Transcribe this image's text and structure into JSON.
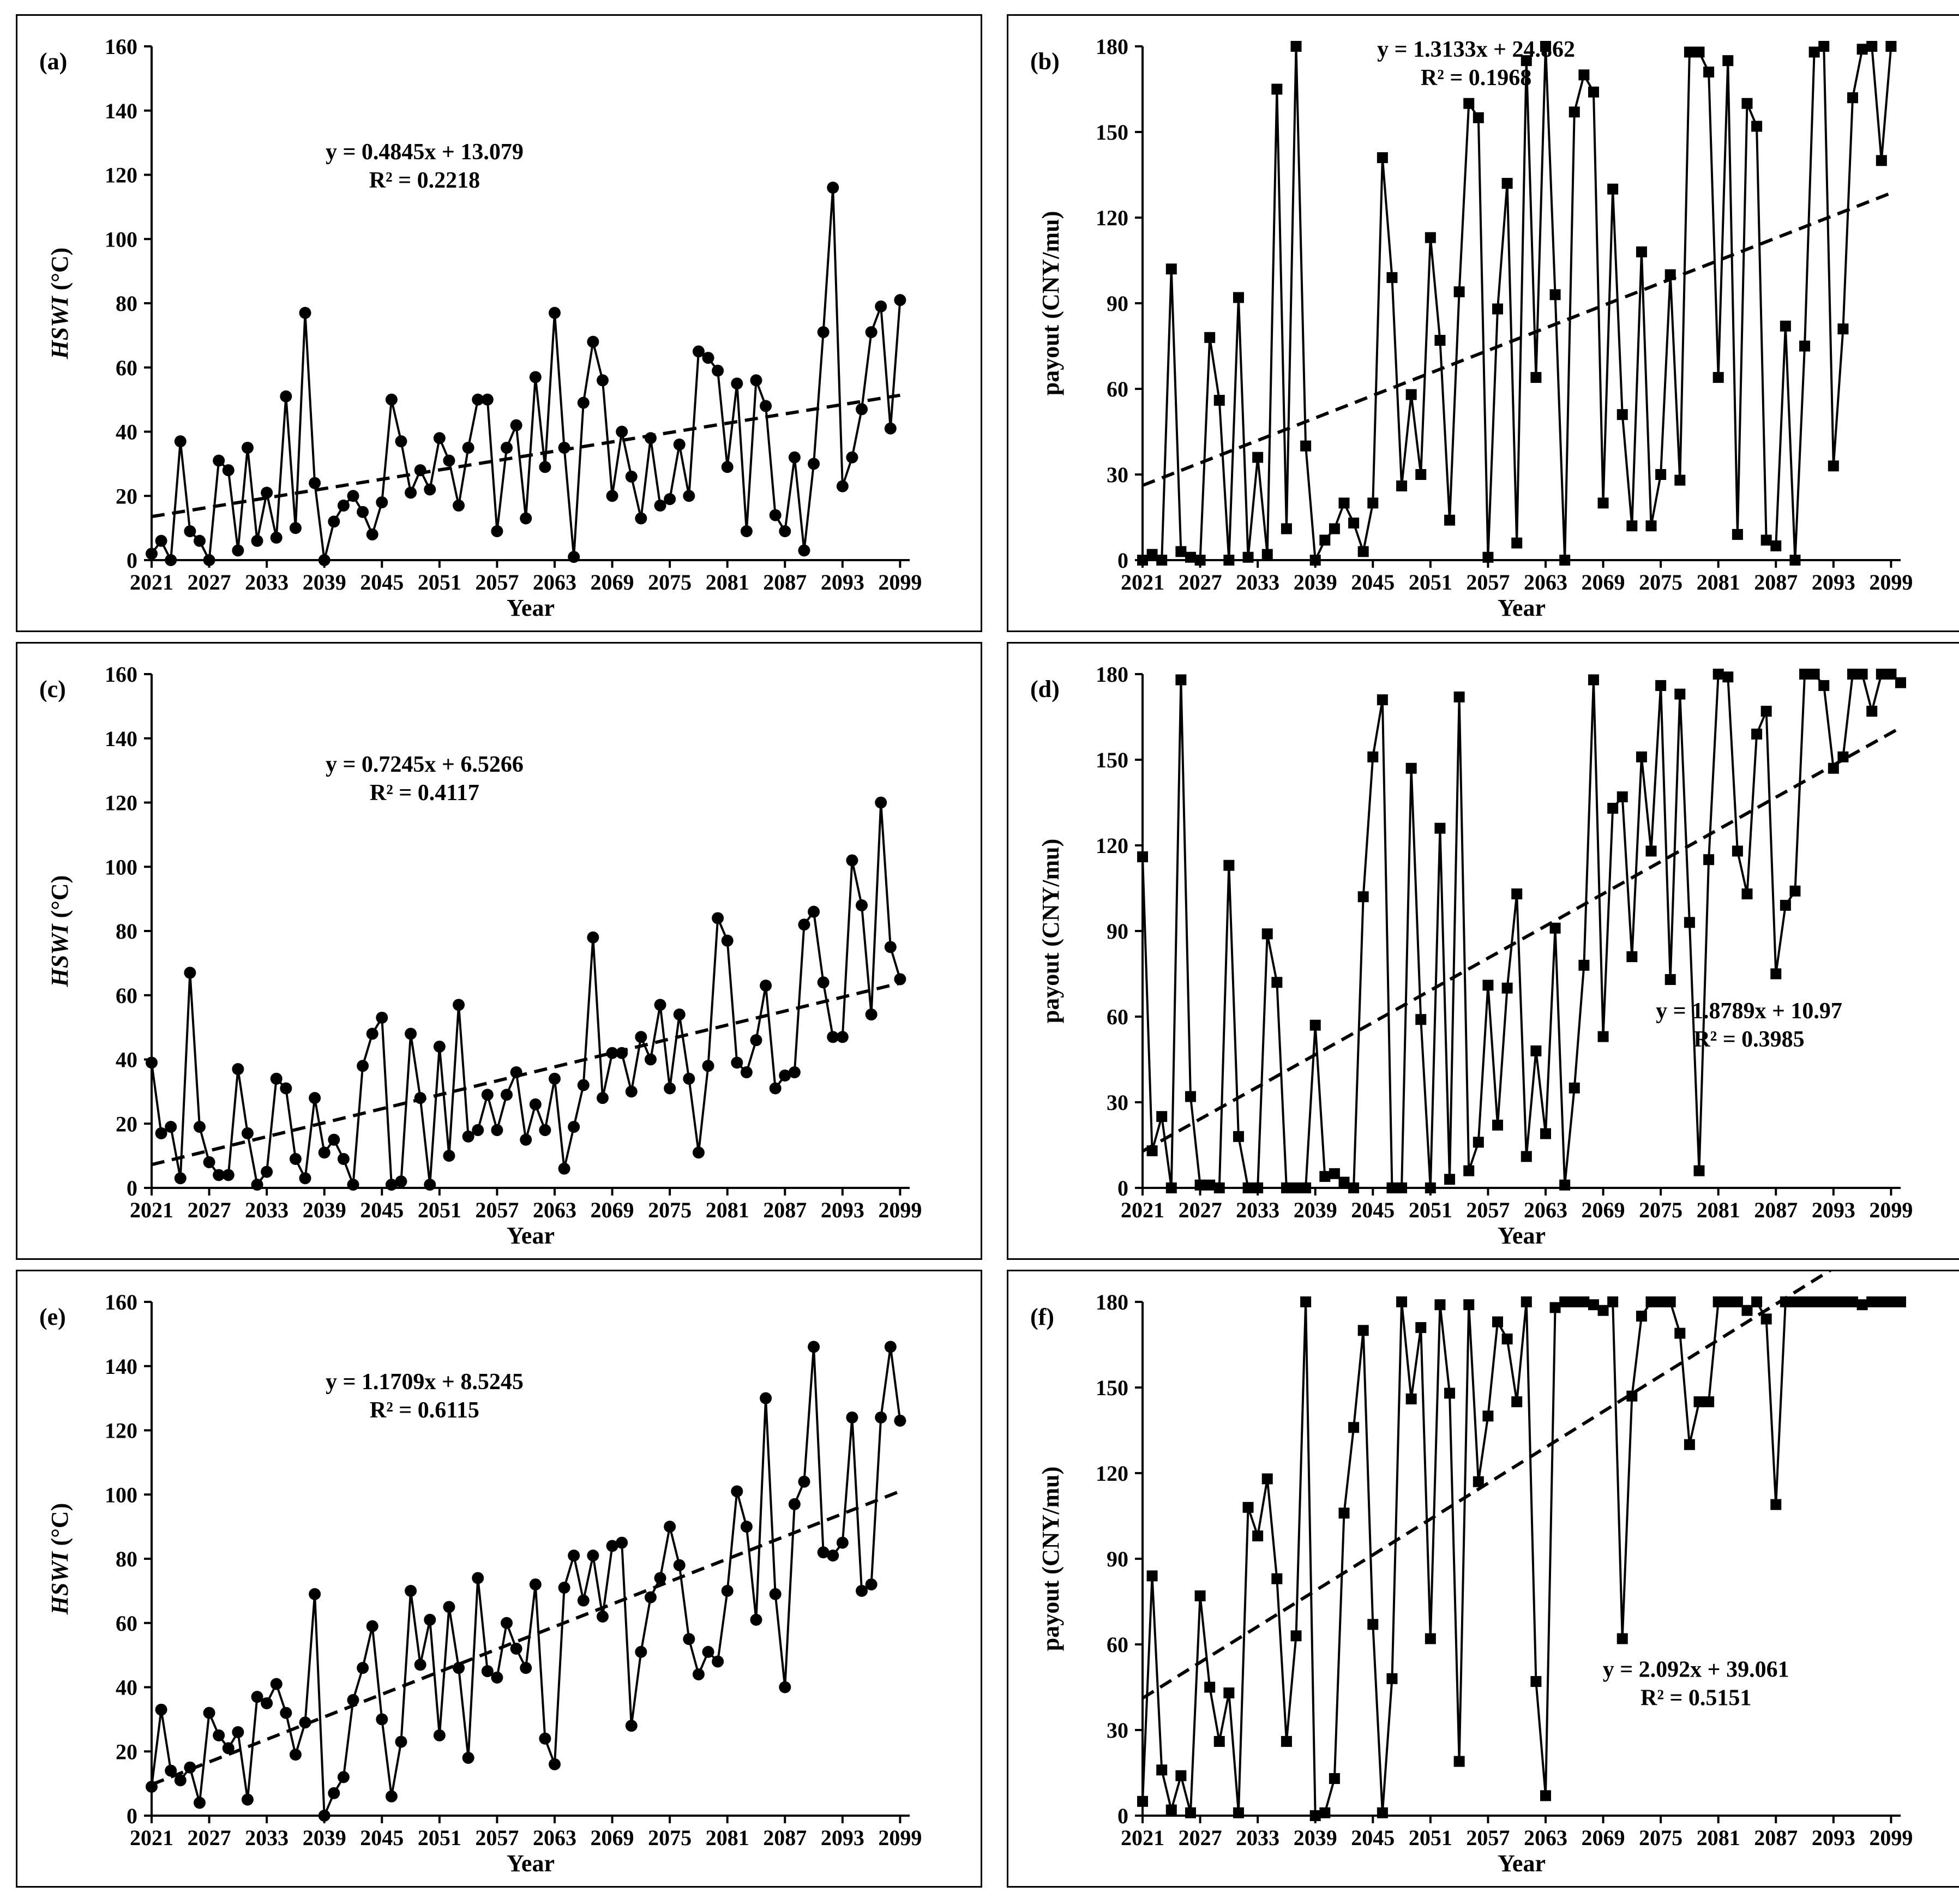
{
  "chart_data": [
    {
      "type": "line",
      "panel_label": "(a)",
      "ylabel": "HSWI (°C)",
      "ylabel_italic_part": "HSWI",
      "ylabel_unit_part": " (°C)",
      "xlabel": "Year",
      "xlim": [
        2021,
        2100
      ],
      "ylim": [
        0,
        160
      ],
      "yticks": [
        0,
        20,
        40,
        60,
        80,
        100,
        120,
        140,
        160
      ],
      "xticks": [
        2021,
        2027,
        2033,
        2039,
        2045,
        2051,
        2057,
        2063,
        2069,
        2075,
        2081,
        2087,
        2093,
        2099
      ],
      "marker": "circle",
      "x_start": 2021,
      "values": [
        2,
        6,
        0,
        37,
        9,
        6,
        0,
        31,
        28,
        3,
        35,
        6,
        21,
        7,
        51,
        10,
        77,
        24,
        0,
        12,
        17,
        20,
        15,
        8,
        18,
        50,
        37,
        21,
        28,
        22,
        38,
        31,
        17,
        35,
        50,
        50,
        9,
        35,
        42,
        13,
        57,
        29,
        77,
        35,
        1,
        49,
        68,
        56,
        20,
        40,
        26,
        13,
        38,
        17,
        19,
        36,
        20,
        65,
        63,
        59,
        29,
        55,
        9,
        56,
        48,
        14,
        9,
        32,
        3,
        30,
        71,
        116,
        23,
        32,
        47,
        71,
        79,
        41,
        81
      ],
      "trend": {
        "slope": 0.4845,
        "intercept": 13.079
      },
      "equation": "y = 0.4845x + 13.079",
      "r2_text": "R² = 0.2218",
      "eq_anchor": [
        0.36,
        0.78
      ]
    },
    {
      "type": "line",
      "panel_label": "(b)",
      "ylabel": "payout (CNY/mu)",
      "xlabel": "Year",
      "xlim": [
        2021,
        2100
      ],
      "ylim": [
        0,
        180
      ],
      "yticks": [
        0,
        30,
        60,
        90,
        120,
        150,
        180
      ],
      "xticks": [
        2021,
        2027,
        2033,
        2039,
        2045,
        2051,
        2057,
        2063,
        2069,
        2075,
        2081,
        2087,
        2093,
        2099
      ],
      "marker": "square",
      "x_start": 2021,
      "values": [
        0,
        2,
        0,
        102,
        3,
        1,
        0,
        78,
        56,
        0,
        92,
        1,
        36,
        2,
        165,
        11,
        180,
        40,
        0,
        7,
        11,
        20,
        13,
        3,
        20,
        141,
        99,
        26,
        58,
        30,
        113,
        77,
        14,
        94,
        160,
        155,
        1,
        88,
        132,
        6,
        175,
        64,
        180,
        93,
        0,
        157,
        170,
        164,
        20,
        130,
        51,
        12,
        108,
        12,
        30,
        100,
        28,
        178,
        178,
        171,
        64,
        175,
        9,
        160,
        152,
        7,
        5,
        82,
        0,
        75,
        178,
        180,
        33,
        81,
        162,
        179,
        180,
        140,
        180
      ],
      "trend": {
        "slope": 1.3133,
        "intercept": 24.862
      },
      "equation": "y = 1.3133x + 24.862",
      "r2_text": "R² = 0.1968",
      "eq_anchor": [
        0.44,
        0.98
      ]
    },
    {
      "type": "line",
      "panel_label": "(c)",
      "ylabel": "HSWI (°C)",
      "ylabel_italic_part": "HSWI",
      "ylabel_unit_part": " (°C)",
      "xlabel": "Year",
      "xlim": [
        2021,
        2100
      ],
      "ylim": [
        0,
        160
      ],
      "yticks": [
        0,
        20,
        40,
        60,
        80,
        100,
        120,
        140,
        160
      ],
      "xticks": [
        2021,
        2027,
        2033,
        2039,
        2045,
        2051,
        2057,
        2063,
        2069,
        2075,
        2081,
        2087,
        2093,
        2099
      ],
      "marker": "circle",
      "x_start": 2021,
      "values": [
        39,
        17,
        19,
        3,
        67,
        19,
        8,
        4,
        4,
        37,
        17,
        1,
        5,
        34,
        31,
        9,
        3,
        28,
        11,
        15,
        9,
        1,
        38,
        48,
        53,
        1,
        2,
        48,
        28,
        1,
        44,
        10,
        57,
        16,
        18,
        29,
        18,
        29,
        36,
        15,
        26,
        18,
        34,
        6,
        19,
        32,
        78,
        28,
        42,
        42,
        30,
        47,
        40,
        57,
        31,
        54,
        34,
        11,
        38,
        84,
        77,
        39,
        36,
        46,
        63,
        31,
        35,
        36,
        82,
        86,
        64,
        47,
        47,
        102,
        88,
        54,
        120,
        75,
        65
      ],
      "trend": {
        "slope": 0.7245,
        "intercept": 6.5266
      },
      "equation": "y = 0.7245x + 6.5266",
      "r2_text": "R² = 0.4117",
      "eq_anchor": [
        0.36,
        0.81
      ]
    },
    {
      "type": "line",
      "panel_label": "(d)",
      "ylabel": "payout (CNY/mu)",
      "xlabel": "Year",
      "xlim": [
        2021,
        2100
      ],
      "ylim": [
        0,
        180
      ],
      "yticks": [
        0,
        30,
        60,
        90,
        120,
        150,
        180
      ],
      "xticks": [
        2021,
        2027,
        2033,
        2039,
        2045,
        2051,
        2057,
        2063,
        2069,
        2075,
        2081,
        2087,
        2093,
        2099
      ],
      "marker": "square",
      "x_start": 2021,
      "values": [
        116,
        13,
        25,
        0,
        178,
        32,
        1,
        1,
        0,
        113,
        18,
        0,
        0,
        89,
        72,
        0,
        0,
        0,
        57,
        4,
        5,
        2,
        0,
        102,
        151,
        171,
        0,
        0,
        147,
        59,
        0,
        126,
        3,
        172,
        6,
        16,
        71,
        22,
        70,
        103,
        11,
        48,
        19,
        91,
        1,
        35,
        78,
        178,
        53,
        133,
        137,
        81,
        151,
        118,
        176,
        73,
        173,
        93,
        6,
        115,
        180,
        179,
        118,
        103,
        159,
        167,
        75,
        99,
        104,
        180,
        180,
        176,
        147,
        151,
        180,
        180,
        167,
        180,
        180,
        177
      ],
      "trend": {
        "slope": 1.8789,
        "intercept": 10.97
      },
      "equation": "y = 1.8789x + 10.97",
      "r2_text": "R² = 0.3985",
      "eq_anchor": [
        0.8,
        0.33
      ]
    },
    {
      "type": "line",
      "panel_label": "(e)",
      "ylabel": "HSWI (°C)",
      "ylabel_italic_part": "HSWI",
      "ylabel_unit_part": " (°C)",
      "xlabel": "Year",
      "xlim": [
        2021,
        2100
      ],
      "ylim": [
        0,
        160
      ],
      "yticks": [
        0,
        20,
        40,
        60,
        80,
        100,
        120,
        140,
        160
      ],
      "xticks": [
        2021,
        2027,
        2033,
        2039,
        2045,
        2051,
        2057,
        2063,
        2069,
        2075,
        2081,
        2087,
        2093,
        2099
      ],
      "marker": "circle",
      "x_start": 2021,
      "values": [
        9,
        33,
        14,
        11,
        15,
        4,
        32,
        25,
        21,
        26,
        5,
        37,
        35,
        41,
        32,
        19,
        29,
        69,
        0,
        7,
        12,
        36,
        46,
        59,
        30,
        6,
        23,
        70,
        47,
        61,
        25,
        65,
        46,
        18,
        74,
        45,
        43,
        60,
        52,
        46,
        72,
        24,
        16,
        71,
        81,
        67,
        81,
        62,
        84,
        85,
        28,
        51,
        68,
        74,
        90,
        78,
        55,
        44,
        51,
        48,
        70,
        101,
        90,
        61,
        130,
        69,
        40,
        97,
        104,
        146,
        82,
        81,
        85,
        124,
        70,
        72,
        124,
        146,
        123
      ],
      "trend": {
        "slope": 1.1709,
        "intercept": 8.5245
      },
      "equation": "y = 1.1709x + 8.5245",
      "r2_text": "R² = 0.6115",
      "eq_anchor": [
        0.36,
        0.83
      ]
    },
    {
      "type": "line",
      "panel_label": "(f)",
      "ylabel": "payout (CNY/mu)",
      "xlabel": "Year",
      "xlim": [
        2021,
        2100
      ],
      "ylim": [
        0,
        180
      ],
      "yticks": [
        0,
        30,
        60,
        90,
        120,
        150,
        180
      ],
      "xticks": [
        2021,
        2027,
        2033,
        2039,
        2045,
        2051,
        2057,
        2063,
        2069,
        2075,
        2081,
        2087,
        2093,
        2099
      ],
      "marker": "square",
      "x_start": 2021,
      "values": [
        5,
        84,
        16,
        2,
        14,
        1,
        77,
        45,
        26,
        43,
        1,
        108,
        98,
        118,
        83,
        26,
        63,
        180,
        0,
        1,
        13,
        106,
        136,
        170,
        67,
        1,
        48,
        180,
        146,
        171,
        62,
        179,
        148,
        19,
        179,
        117,
        140,
        173,
        167,
        145,
        180,
        47,
        7,
        178,
        180,
        180,
        180,
        179,
        177,
        180,
        62,
        147,
        175,
        180,
        180,
        180,
        169,
        130,
        145,
        145,
        180,
        180,
        180,
        177,
        180,
        174,
        109,
        180,
        180,
        180,
        180,
        180,
        180,
        180,
        180,
        179,
        180,
        180,
        180,
        180
      ],
      "trend": {
        "slope": 2.092,
        "intercept": 39.061
      },
      "equation": "y = 2.092x + 39.061",
      "r2_text": "R² = 0.5151",
      "eq_anchor": [
        0.73,
        0.27
      ]
    }
  ]
}
